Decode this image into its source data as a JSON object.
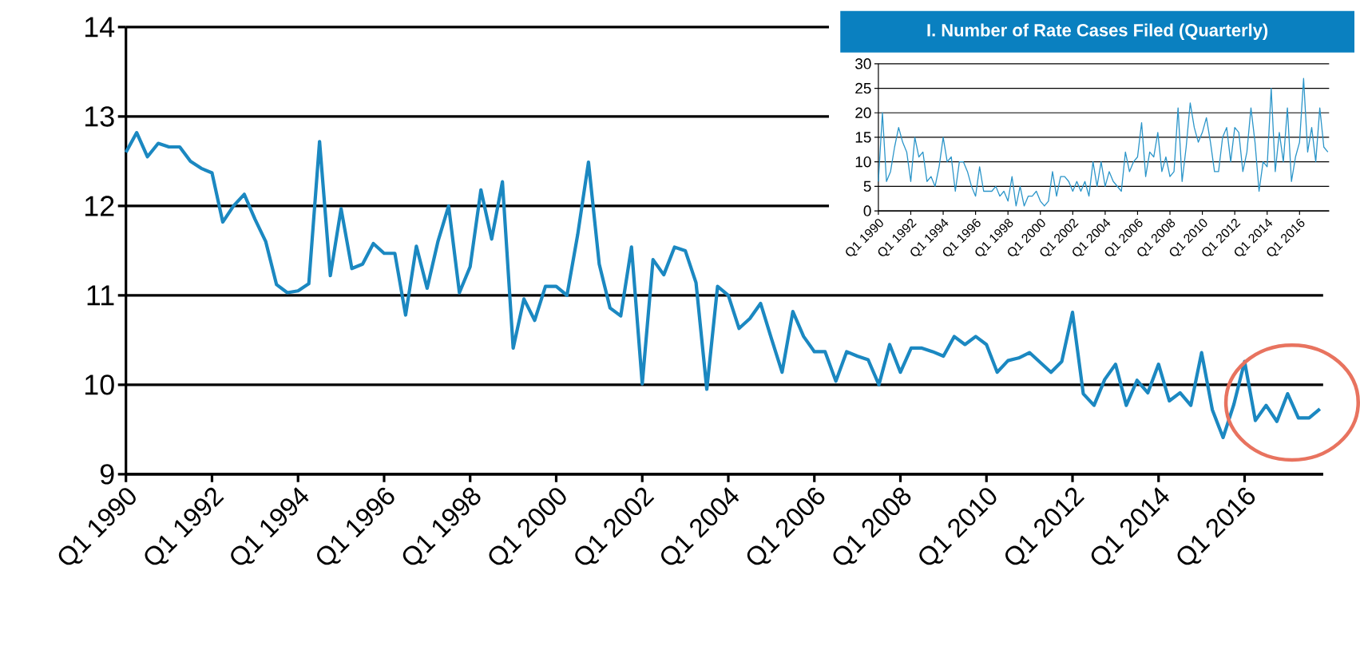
{
  "chart_data": [
    {
      "type": "line",
      "color": "#1b88c1",
      "ylim": [
        9,
        14
      ],
      "yticks": [
        9,
        10,
        11,
        12,
        13,
        14
      ],
      "grid": "y",
      "categories": [
        "Q1 1990",
        null,
        null,
        null,
        null,
        null,
        null,
        null,
        "Q1 1992",
        null,
        null,
        null,
        null,
        null,
        null,
        null,
        "Q1 1994",
        null,
        null,
        null,
        null,
        null,
        null,
        null,
        "Q1 1996",
        null,
        null,
        null,
        null,
        null,
        null,
        null,
        "Q1 1998",
        null,
        null,
        null,
        null,
        null,
        null,
        null,
        "Q1 2000",
        null,
        null,
        null,
        null,
        null,
        null,
        null,
        "Q1 2002",
        null,
        null,
        null,
        null,
        null,
        null,
        null,
        "Q1 2004",
        null,
        null,
        null,
        null,
        null,
        null,
        null,
        "Q1 2006",
        null,
        null,
        null,
        null,
        null,
        null,
        null,
        "Q1 2008",
        null,
        null,
        null,
        null,
        null,
        null,
        null,
        "Q1 2010",
        null,
        null,
        null,
        null,
        null,
        null,
        null,
        "Q1 2012",
        null,
        null,
        null,
        null,
        null,
        null,
        null,
        "Q1 2014",
        null,
        null,
        null,
        null,
        null,
        null,
        null,
        "Q1 2016",
        null,
        null,
        null,
        null,
        null,
        null,
        null
      ],
      "values": [
        12.6,
        12.82,
        12.55,
        12.7,
        12.66,
        12.66,
        12.5,
        12.42,
        12.37,
        11.82,
        12.0,
        12.13,
        11.85,
        11.6,
        11.12,
        11.03,
        11.05,
        11.13,
        12.72,
        11.22,
        11.97,
        11.3,
        11.35,
        11.58,
        11.47,
        11.47,
        10.78,
        11.55,
        11.08,
        11.6,
        12.0,
        11.03,
        11.32,
        12.18,
        11.63,
        12.27,
        10.41,
        10.96,
        10.72,
        11.1,
        11.1,
        11.0,
        11.68,
        12.49,
        11.35,
        10.86,
        10.77,
        11.54,
        10.01,
        11.4,
        11.23,
        11.54,
        11.5,
        11.14,
        9.95,
        11.1,
        11.0,
        10.63,
        10.74,
        10.91,
        10.52,
        10.14,
        10.82,
        10.54,
        10.37,
        10.37,
        10.04,
        10.37,
        10.32,
        10.28,
        10.0,
        10.45,
        10.14,
        10.41,
        10.41,
        10.37,
        10.32,
        10.54,
        10.45,
        10.54,
        10.45,
        10.14,
        10.27,
        10.3,
        10.36,
        10.25,
        10.14,
        10.26,
        10.81,
        9.9,
        9.77,
        10.06,
        10.23,
        9.77,
        10.05,
        9.91,
        10.23,
        9.82,
        9.91,
        9.77,
        10.36,
        9.72,
        9.41,
        9.78,
        10.26,
        9.6,
        9.77,
        9.59,
        9.9,
        9.63,
        9.63,
        9.73
      ]
    },
    {
      "type": "line",
      "title": "I. Number of Rate Cases Filed (Quarterly)",
      "color": "#2b95c9",
      "ylim": [
        0,
        30
      ],
      "yticks": [
        0,
        5,
        10,
        15,
        20,
        25,
        30
      ],
      "grid": "y",
      "categories": [
        "Q1 1990",
        null,
        null,
        null,
        null,
        null,
        null,
        null,
        "Q1 1992",
        null,
        null,
        null,
        null,
        null,
        null,
        null,
        "Q1 1994",
        null,
        null,
        null,
        null,
        null,
        null,
        null,
        "Q1 1996",
        null,
        null,
        null,
        null,
        null,
        null,
        null,
        "Q1 1998",
        null,
        null,
        null,
        null,
        null,
        null,
        null,
        "Q1 2000",
        null,
        null,
        null,
        null,
        null,
        null,
        null,
        "Q1 2002",
        null,
        null,
        null,
        null,
        null,
        null,
        null,
        "Q1 2004",
        null,
        null,
        null,
        null,
        null,
        null,
        null,
        "Q1 2006",
        null,
        null,
        null,
        null,
        null,
        null,
        null,
        "Q1 2008",
        null,
        null,
        null,
        null,
        null,
        null,
        null,
        "Q1 2010",
        null,
        null,
        null,
        null,
        null,
        null,
        null,
        "Q1 2012",
        null,
        null,
        null,
        null,
        null,
        null,
        null,
        "Q1 2014",
        null,
        null,
        null,
        null,
        null,
        null,
        null,
        "Q1 2016",
        null,
        null,
        null,
        null,
        null,
        null,
        null
      ],
      "values": [
        6,
        20,
        6,
        8,
        13,
        17,
        14,
        12,
        6,
        15,
        11,
        12,
        6,
        7,
        5,
        9,
        15,
        10,
        11,
        4,
        10,
        10,
        8,
        5,
        3,
        9,
        4,
        4,
        4,
        5,
        3,
        4,
        2,
        7,
        1,
        5,
        1,
        3,
        3,
        4,
        2,
        1,
        2,
        8,
        3,
        7,
        7,
        6,
        4,
        6,
        4,
        6,
        3,
        10,
        5,
        10,
        5,
        8,
        6,
        5,
        4,
        12,
        8,
        10,
        11,
        18,
        7,
        12,
        11,
        16,
        8,
        11,
        7,
        8,
        21,
        6,
        13,
        22,
        17,
        14,
        16,
        19,
        14,
        8,
        8,
        15,
        17,
        10,
        17,
        16,
        8,
        12,
        21,
        14,
        4,
        10,
        9,
        25,
        8,
        16,
        10,
        21,
        6,
        11,
        14,
        27,
        12,
        17,
        10,
        21,
        13,
        12
      ]
    }
  ]
}
